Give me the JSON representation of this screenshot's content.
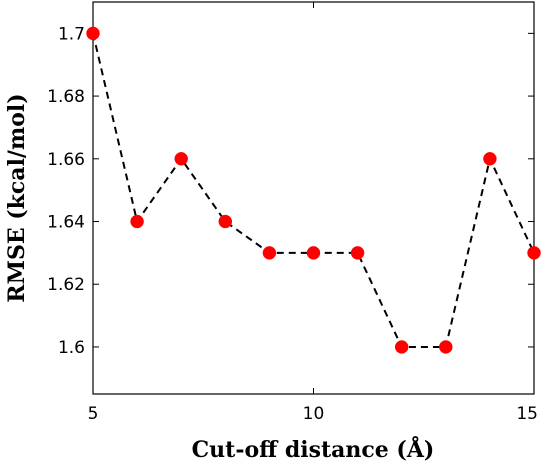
{
  "chart_data": {
    "type": "line",
    "title": "",
    "xlabel": "Cut-off distance (Å)",
    "ylabel": "RMSE (kcal/mol)",
    "xlim": [
      5,
      15
    ],
    "ylim": [
      1.585,
      1.71
    ],
    "x_ticks": [
      5,
      10,
      15
    ],
    "y_ticks": [
      1.6,
      1.62,
      1.64,
      1.66,
      1.68,
      1.7
    ],
    "y_tick_labels": [
      "1.6",
      "1.62",
      "1.64",
      "1.66",
      "1.68",
      "1.7"
    ],
    "grid": false,
    "series": [
      {
        "x": [
          5,
          6,
          7,
          8,
          9,
          10,
          11,
          12,
          13,
          14,
          15
        ],
        "y": [
          1.7,
          1.64,
          1.66,
          1.64,
          1.63,
          1.63,
          1.63,
          1.6,
          1.6,
          1.66,
          1.63
        ],
        "line_style": "dashed",
        "line_color": "#000000",
        "marker_color": "#ff0000"
      }
    ]
  }
}
